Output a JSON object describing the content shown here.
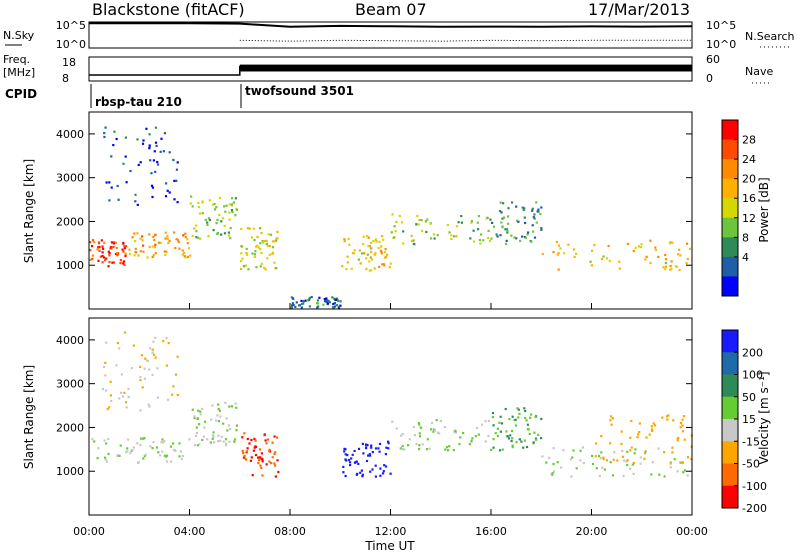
{
  "header": {
    "station": "Blackstone (fitACF)",
    "beam": "Beam 07",
    "date": "17/Mar/2013"
  },
  "noise_panel": {
    "left_label": "N.Sky",
    "left_ticks": [
      "10^5",
      "10^0"
    ],
    "right_ticks": [
      "10^5",
      "10^0"
    ],
    "right_label": "N.Search"
  },
  "freq_panel": {
    "left_label_1": "Freq.",
    "left_label_2": "[MHz]",
    "left_ticks": [
      "18",
      "8"
    ],
    "right_ticks": [
      "60",
      "0"
    ],
    "right_label": "Nave"
  },
  "cpid": {
    "label": "CPID",
    "segments": [
      {
        "name": "rbsp-tau 210",
        "start_hour": 0,
        "end_hour": 6
      },
      {
        "name": "twofsound 3501",
        "start_hour": 6,
        "end_hour": 24
      }
    ]
  },
  "axes": {
    "xlabel": "Time UT",
    "x_ticks": [
      "00:00",
      "04:00",
      "08:00",
      "12:00",
      "16:00",
      "20:00",
      "00:00"
    ],
    "ylabel": "Slant Range [km]",
    "y_ticks": [
      "1000",
      "2000",
      "3000",
      "4000"
    ]
  },
  "power_colorbar": {
    "label": "Power [dB]",
    "ticks": [
      "28",
      "24",
      "20",
      "16",
      "12",
      "8",
      "4"
    ],
    "colors": [
      "#ff0000",
      "#ff4a00",
      "#ff8a00",
      "#ffb000",
      "#d6d600",
      "#6fc43d",
      "#2e8b57",
      "#1f5fa6",
      "#0000ff"
    ]
  },
  "velocity_colorbar": {
    "label": "Velocity [m s⁻¹]",
    "ticks": [
      "200",
      "100",
      "50",
      "15",
      "-15",
      "-50",
      "-100",
      "-200"
    ],
    "colors": [
      "#1a1aff",
      "#1f6aa8",
      "#2e8b57",
      "#66cc33",
      "#c8c8c8",
      "#ffa500",
      "#ff6a00",
      "#ff0000"
    ]
  },
  "chart_data": [
    {
      "type": "line",
      "title": "",
      "xlabel": "",
      "ylabel": "",
      "x_range_hours": [
        0,
        24
      ],
      "yscale": "log",
      "ylim": [
        1,
        100000
      ],
      "series": [
        {
          "x": [
            0,
            2,
            4,
            6,
            8,
            10,
            12,
            14,
            16,
            18,
            20,
            22,
            24
          ],
          "y": [
            60000,
            60000,
            60000,
            50000,
            12000,
            18000,
            15000,
            12000,
            13000,
            12000,
            14000,
            13000,
            15000
          ]
        },
        {
          "x": [
            6,
            8,
            10,
            12,
            14,
            16,
            18,
            20,
            22,
            24
          ],
          "y": [
            30,
            20,
            30,
            25,
            20,
            30,
            25,
            30,
            30,
            30
          ]
        }
      ]
    },
    {
      "type": "line",
      "title": "",
      "xlabel": "",
      "ylabel": "",
      "x_range_hours": [
        0,
        24
      ],
      "ylim": [
        8,
        18
      ],
      "series": [
        {
          "x": [
            0,
            6,
            6,
            24
          ],
          "y": [
            10.5,
            10.5,
            14,
            14
          ]
        }
      ]
    },
    {
      "type": "heatmap",
      "title": "",
      "xlabel": "Time UT",
      "ylabel": "Slant Range [km]",
      "x_range_hours": [
        0,
        24
      ],
      "ylim": [
        0,
        4500
      ],
      "colorbar": "Power [dB]",
      "colorbar_ticks": [
        4,
        8,
        12,
        16,
        20,
        24,
        28
      ],
      "echo_regions": [
        {
          "t_start": 0.0,
          "t_end": 1.5,
          "range_km": [
            1000,
            1600
          ],
          "value": 26
        },
        {
          "t_start": 1.5,
          "t_end": 4.0,
          "range_km": [
            1200,
            1800
          ],
          "value": 20
        },
        {
          "t_start": 4.0,
          "t_end": 5.9,
          "range_km": [
            1600,
            2600
          ],
          "value": 14
        },
        {
          "t_start": 0.5,
          "t_end": 3.5,
          "range_km": [
            2400,
            4200
          ],
          "value": 6
        },
        {
          "t_start": 6.0,
          "t_end": 7.5,
          "range_km": [
            900,
            1900
          ],
          "value": 16
        },
        {
          "t_start": 8.0,
          "t_end": 10.0,
          "range_km": [
            50,
            300
          ],
          "value": 8
        },
        {
          "t_start": 10.0,
          "t_end": 12.0,
          "range_km": [
            900,
            1700
          ],
          "value": 18
        },
        {
          "t_start": 12.0,
          "t_end": 16.0,
          "range_km": [
            1500,
            2200
          ],
          "value": 14
        },
        {
          "t_start": 16.0,
          "t_end": 18.0,
          "range_km": [
            1500,
            2500
          ],
          "value": 10
        },
        {
          "t_start": 18.0,
          "t_end": 24.0,
          "range_km": [
            900,
            1600
          ],
          "value": 18
        }
      ]
    },
    {
      "type": "heatmap",
      "title": "",
      "xlabel": "Time UT",
      "ylabel": "Slant Range [km]",
      "x_range_hours": [
        0,
        24
      ],
      "ylim": [
        0,
        4500
      ],
      "colorbar": "Velocity [m s⁻¹]",
      "colorbar_ticks": [
        -200,
        -100,
        -50,
        -15,
        15,
        50,
        100,
        200
      ],
      "echo_regions": [
        {
          "t_start": 0.0,
          "t_end": 4.0,
          "range_km": [
            1200,
            1800
          ],
          "value": 0
        },
        {
          "t_start": 4.0,
          "t_end": 5.9,
          "range_km": [
            1600,
            2600
          ],
          "value": 0
        },
        {
          "t_start": 0.5,
          "t_end": 3.5,
          "range_km": [
            2400,
            4200
          ],
          "value": -30
        },
        {
          "t_start": 6.0,
          "t_end": 7.5,
          "range_km": [
            900,
            1900
          ],
          "value": -150
        },
        {
          "t_start": 10.0,
          "t_end": 12.0,
          "range_km": [
            900,
            1700
          ],
          "value": 200
        },
        {
          "t_start": 12.0,
          "t_end": 16.0,
          "range_km": [
            1500,
            2200
          ],
          "value": 0
        },
        {
          "t_start": 16.0,
          "t_end": 18.0,
          "range_km": [
            1500,
            2500
          ],
          "value": 30
        },
        {
          "t_start": 18.0,
          "t_end": 24.0,
          "range_km": [
            900,
            1600
          ],
          "value": 0
        },
        {
          "t_start": 20.0,
          "t_end": 24.0,
          "range_km": [
            1200,
            2300
          ],
          "value": -60
        }
      ]
    }
  ]
}
